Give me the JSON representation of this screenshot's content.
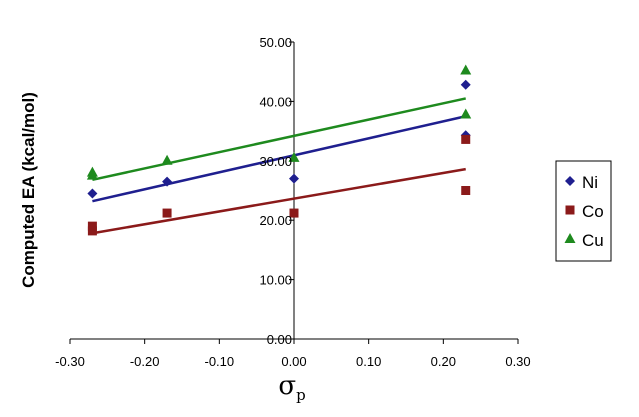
{
  "chart_data": {
    "type": "scatter",
    "title": "",
    "ylabel": "Computed EA (kcal/mol)",
    "xlabel_symbol": "σ",
    "xlabel_subscript": "p",
    "xlim": [
      -0.3,
      0.3
    ],
    "ylim": [
      0,
      50
    ],
    "xticks": [
      -0.3,
      -0.2,
      -0.1,
      0.0,
      0.1,
      0.2,
      0.3
    ],
    "yticks": [
      0,
      10,
      20,
      30,
      40,
      50
    ],
    "xtick_labels": [
      "-0.30",
      "-0.20",
      "-0.10",
      "0.00",
      "0.10",
      "0.20",
      "0.30"
    ],
    "ytick_labels": [
      "0.00",
      "10.00",
      "20.00",
      "30.00",
      "40.00",
      "50.00"
    ],
    "grid": false,
    "legend_position": "right",
    "series": [
      {
        "name": "Ni",
        "marker": "diamond",
        "color": "#1F1F8F",
        "points": [
          [
            -0.27,
            24.5
          ],
          [
            -0.17,
            26.5
          ],
          [
            0.0,
            27.0
          ],
          [
            0.23,
            34.3
          ],
          [
            0.23,
            42.8
          ]
        ],
        "trendline": [
          [
            -0.27,
            23.2
          ],
          [
            0.23,
            37.5
          ]
        ]
      },
      {
        "name": "Co",
        "marker": "square",
        "color": "#8B1A1A",
        "points": [
          [
            -0.27,
            18.2
          ],
          [
            -0.27,
            19.0
          ],
          [
            -0.17,
            21.2
          ],
          [
            0.0,
            21.2
          ],
          [
            0.23,
            25.0
          ],
          [
            0.23,
            33.6
          ]
        ],
        "trendline": [
          [
            -0.27,
            17.8
          ],
          [
            0.23,
            28.6
          ]
        ]
      },
      {
        "name": "Cu",
        "marker": "triangle",
        "color": "#1E8A1E",
        "points": [
          [
            -0.27,
            27.5
          ],
          [
            -0.27,
            28.0
          ],
          [
            -0.17,
            30.0
          ],
          [
            0.0,
            30.5
          ],
          [
            0.23,
            37.8
          ],
          [
            0.23,
            45.2
          ]
        ],
        "trendline": [
          [
            -0.27,
            26.8
          ],
          [
            0.23,
            40.5
          ]
        ]
      }
    ]
  }
}
